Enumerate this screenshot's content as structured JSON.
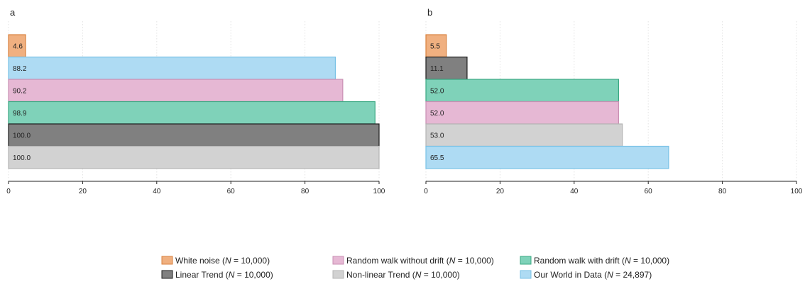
{
  "chart_data": [
    {
      "type": "bar",
      "orientation": "horizontal",
      "panel_label": "a",
      "xlim": [
        0,
        100
      ],
      "xticks": [
        0,
        20,
        40,
        60,
        80,
        100
      ],
      "grid": "vertical dotted",
      "bars": [
        {
          "series": "white_noise",
          "value": 4.6,
          "label": "4.6"
        },
        {
          "series": "owid",
          "value": 88.2,
          "label": "88.2"
        },
        {
          "series": "rw_no_drift",
          "value": 90.2,
          "label": "90.2"
        },
        {
          "series": "rw_drift",
          "value": 98.9,
          "label": "98.9"
        },
        {
          "series": "linear",
          "value": 100.0,
          "label": "100.0"
        },
        {
          "series": "nonlinear",
          "value": 100.0,
          "label": "100.0"
        }
      ]
    },
    {
      "type": "bar",
      "orientation": "horizontal",
      "panel_label": "b",
      "xlim": [
        0,
        100
      ],
      "xticks": [
        0,
        20,
        40,
        60,
        80,
        100
      ],
      "grid": "vertical dotted",
      "bars": [
        {
          "series": "white_noise",
          "value": 5.5,
          "label": "5.5"
        },
        {
          "series": "linear",
          "value": 11.1,
          "label": "11.1"
        },
        {
          "series": "rw_drift",
          "value": 52.0,
          "label": "52.0"
        },
        {
          "series": "rw_no_drift",
          "value": 52.0,
          "label": "52.0"
        },
        {
          "series": "nonlinear",
          "value": 53.0,
          "label": "53.0"
        },
        {
          "series": "owid",
          "value": 65.5,
          "label": "65.5"
        }
      ]
    }
  ],
  "series": {
    "white_noise": {
      "color": "#f0b080",
      "stroke": "#d9823f"
    },
    "linear": {
      "color": "#808080",
      "stroke": "#1f1f1f"
    },
    "rw_no_drift": {
      "color": "#e6b8d4",
      "stroke": "#c98fb3"
    },
    "nonlinear": {
      "color": "#d2d2d2",
      "stroke": "#b5b5b5"
    },
    "rw_drift": {
      "color": "#7fd2b9",
      "stroke": "#3aa882"
    },
    "owid": {
      "color": "#aedbf3",
      "stroke": "#78c1e6"
    }
  },
  "legend": {
    "placement": "bottom",
    "rows": [
      [
        {
          "series": "white_noise",
          "name": "White noise",
          "n_label": "N",
          "n_value": "= 10,000"
        },
        {
          "series": "rw_no_drift",
          "name": "Random walk without drift",
          "n_label": "N",
          "n_value": "= 10,000"
        },
        {
          "series": "rw_drift",
          "name": "Random walk with drift",
          "n_label": "N",
          "n_value": "= 10,000"
        }
      ],
      [
        {
          "series": "linear",
          "name": "Linear Trend",
          "n_label": "N",
          "n_value": "= 10,000"
        },
        {
          "series": "nonlinear",
          "name": "Non-linear Trend",
          "n_label": "N",
          "n_value": "= 10,000"
        },
        {
          "series": "owid",
          "name": "Our World in Data",
          "n_label": "N",
          "n_value": "= 24,897"
        }
      ]
    ]
  }
}
